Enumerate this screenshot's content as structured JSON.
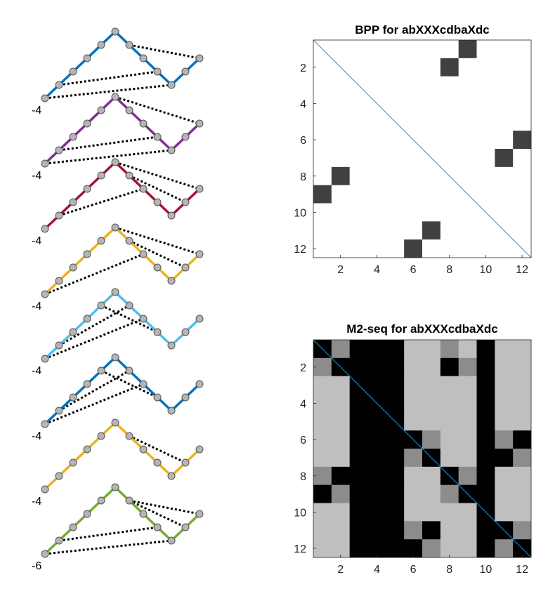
{
  "figure": {
    "background": "#ffffff",
    "node_color": "#b5b5b5",
    "node_edge": "#555555",
    "pair_line_color": "#000000"
  },
  "structures": [
    {
      "label": "-4",
      "color": "#0072bd",
      "heights": [
        -4,
        -3,
        -2,
        -1,
        0,
        1,
        0,
        -1,
        -2,
        -3,
        -2,
        -1
      ],
      "pairs": [
        [
          1,
          10
        ],
        [
          2,
          9
        ],
        [
          7,
          12
        ]
      ]
    },
    {
      "label": "-4",
      "color": "#7e2f8e",
      "heights": [
        -4,
        -3,
        -2,
        -1,
        0,
        1,
        0,
        -1,
        -2,
        -3,
        -2,
        -1
      ],
      "pairs": [
        [
          1,
          10
        ],
        [
          2,
          9
        ],
        [
          6,
          12
        ]
      ]
    },
    {
      "label": "-4",
      "color": "#a2142f",
      "heights": [
        -4,
        -3,
        -2,
        -1,
        0,
        1,
        0,
        -1,
        -2,
        -3,
        -2,
        -1
      ],
      "pairs": [
        [
          2,
          8
        ],
        [
          7,
          11
        ],
        [
          6,
          12
        ]
      ]
    },
    {
      "label": "-4",
      "color": "#edb120",
      "heights": [
        -4,
        -3,
        -2,
        -1,
        0,
        1,
        0,
        -1,
        -2,
        -3,
        -2,
        -1
      ],
      "pairs": [
        [
          1,
          8
        ],
        [
          7,
          11
        ],
        [
          6,
          12
        ]
      ]
    },
    {
      "label": "-4",
      "color": "#4dbeee",
      "heights": [
        -4,
        -3,
        -2,
        -1,
        0,
        1,
        0,
        -1,
        -2,
        -3,
        -2,
        -1
      ],
      "pairs": [
        [
          1,
          8
        ],
        [
          2,
          7
        ],
        [
          5,
          9
        ],
        [
          6,
          9
        ]
      ]
    },
    {
      "label": "-4",
      "color": "#0072bd",
      "heights": [
        -4,
        -3,
        -2,
        -1,
        0,
        1,
        0,
        -1,
        -2,
        -3,
        -2,
        -1
      ],
      "pairs": [
        [
          1,
          8
        ],
        [
          2,
          7
        ],
        [
          5,
          9
        ],
        [
          6,
          9
        ]
      ]
    },
    {
      "label": "-4",
      "color": "#edb120",
      "heights": [
        -4,
        -3,
        -2,
        -1,
        0,
        1,
        0,
        -1,
        -2,
        -3,
        -2,
        -1
      ],
      "pairs": [
        [
          1,
          6
        ],
        [
          2,
          5
        ],
        [
          7,
          11
        ],
        [
          7,
          10
        ]
      ]
    },
    {
      "label": "-6",
      "color": "#77ac30",
      "heights": [
        -4,
        -3,
        -2,
        -1,
        0,
        1,
        0,
        -1,
        -2,
        -3,
        -2,
        -1
      ],
      "pairs": [
        [
          1,
          10
        ],
        [
          2,
          9
        ],
        [
          7,
          11
        ],
        [
          7,
          12
        ]
      ]
    }
  ],
  "chart_data": [
    {
      "type": "heatmap",
      "title": "BPP for abXXXcdbaXdc",
      "n": 12,
      "xticks": [
        2,
        4,
        6,
        8,
        10,
        12
      ],
      "yticks": [
        2,
        4,
        6,
        8,
        10,
        12
      ],
      "diagonal_line_color": "#2e8fc6",
      "colormap": "gray_reversed",
      "values": [
        [
          0,
          0,
          0,
          0,
          0,
          0,
          0,
          0,
          0.75,
          0,
          0,
          0
        ],
        [
          0,
          0,
          0,
          0,
          0,
          0,
          0,
          0.75,
          0,
          0,
          0,
          0
        ],
        [
          0,
          0,
          0,
          0,
          0,
          0,
          0,
          0,
          0,
          0,
          0,
          0
        ],
        [
          0,
          0,
          0,
          0,
          0,
          0,
          0,
          0,
          0,
          0,
          0,
          0
        ],
        [
          0,
          0,
          0,
          0,
          0,
          0,
          0,
          0,
          0,
          0,
          0,
          0
        ],
        [
          0,
          0,
          0,
          0,
          0,
          0,
          0,
          0,
          0,
          0,
          0,
          0.75
        ],
        [
          0,
          0,
          0,
          0,
          0,
          0,
          0,
          0,
          0,
          0,
          0.75,
          0
        ],
        [
          0,
          0.75,
          0,
          0,
          0,
          0,
          0,
          0,
          0,
          0,
          0,
          0
        ],
        [
          0.75,
          0,
          0,
          0,
          0,
          0,
          0,
          0,
          0,
          0,
          0,
          0
        ],
        [
          0,
          0,
          0,
          0,
          0,
          0,
          0,
          0,
          0,
          0,
          0,
          0
        ],
        [
          0,
          0,
          0,
          0,
          0,
          0,
          0.75,
          0,
          0,
          0,
          0,
          0
        ],
        [
          0,
          0,
          0,
          0,
          0,
          0.75,
          0,
          0,
          0,
          0,
          0,
          0
        ]
      ]
    },
    {
      "type": "heatmap",
      "title": "M2-seq for abXXXcdbaXdc",
      "n": 12,
      "xticks": [
        2,
        4,
        6,
        8,
        10,
        12
      ],
      "yticks": [
        2,
        4,
        6,
        8,
        10,
        12
      ],
      "diagonal_line_color": "#2e8fc6",
      "colormap": "gray",
      "values": [
        [
          0,
          0.55,
          0,
          0,
          0,
          0.75,
          0.75,
          0.55,
          0.75,
          0,
          0.75,
          0.75
        ],
        [
          0.55,
          0,
          0,
          0,
          0,
          0.75,
          0.75,
          0,
          0.55,
          0,
          0.75,
          0.75
        ],
        [
          0.75,
          0.75,
          0,
          0,
          0,
          0.75,
          0.75,
          0.75,
          0.75,
          0,
          0.75,
          0.75
        ],
        [
          0.75,
          0.75,
          0,
          0,
          0,
          0.75,
          0.75,
          0.75,
          0.75,
          0,
          0.75,
          0.75
        ],
        [
          0.75,
          0.75,
          0,
          0,
          0,
          0.75,
          0.75,
          0.75,
          0.75,
          0,
          0.75,
          0.75
        ],
        [
          0.75,
          0.75,
          0,
          0,
          0,
          0,
          0.55,
          0.75,
          0.75,
          0,
          0.55,
          0
        ],
        [
          0.75,
          0.75,
          0,
          0,
          0,
          0.55,
          0,
          0.75,
          0.75,
          0,
          0,
          0.55
        ],
        [
          0.55,
          0,
          0,
          0,
          0,
          0.75,
          0.75,
          0,
          0.55,
          0,
          0.75,
          0.75
        ],
        [
          0,
          0.55,
          0,
          0,
          0,
          0.75,
          0.75,
          0.55,
          0,
          0,
          0.75,
          0.75
        ],
        [
          0.75,
          0.75,
          0,
          0,
          0,
          0.75,
          0.75,
          0.75,
          0.75,
          0,
          0.75,
          0.75
        ],
        [
          0.75,
          0.75,
          0,
          0,
          0,
          0.55,
          0,
          0.75,
          0.75,
          0,
          0,
          0.55
        ],
        [
          0.75,
          0.75,
          0,
          0,
          0,
          0,
          0.55,
          0.75,
          0.75,
          0,
          0.55,
          0
        ]
      ]
    }
  ]
}
